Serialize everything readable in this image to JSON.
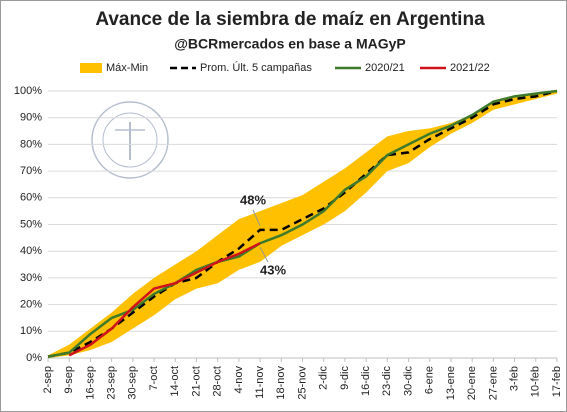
{
  "chart_data": {
    "type": "line",
    "title": "Avance de la siembra de maíz en Argentina",
    "subtitle": "@BCRmercados en base a MAGyP",
    "categories": [
      "2-sep",
      "9-sep",
      "16-sep",
      "23-sep",
      "30-sep",
      "7-oct",
      "14-oct",
      "21-oct",
      "28-oct",
      "4-nov",
      "11-nov",
      "18-nov",
      "25-nov",
      "2-dic",
      "9-dic",
      "16-dic",
      "23-dic",
      "30-dic",
      "6-ene",
      "13-ene",
      "20-ene",
      "27-ene",
      "3-feb",
      "10-feb",
      "17-feb"
    ],
    "series": [
      {
        "name": "Máx-Min",
        "color": "#ffc000",
        "style": "band",
        "upper": [
          1,
          5,
          11,
          17,
          24,
          30,
          35,
          40,
          46,
          52,
          55,
          58,
          61,
          66,
          71,
          77,
          83,
          85,
          86,
          88,
          91,
          96,
          98,
          99,
          100
        ],
        "lower": [
          0,
          1,
          3,
          6,
          11,
          16,
          22,
          26,
          28,
          33,
          36,
          42,
          46,
          50,
          55,
          62,
          70,
          73,
          79,
          84,
          88,
          93,
          95,
          97,
          99
        ]
      },
      {
        "name": "Prom. Últ. 5 campañas",
        "color": "#000000",
        "style": "dashed",
        "values": [
          0.5,
          2,
          6,
          11,
          17,
          23,
          28,
          30,
          36,
          41,
          48,
          48,
          52,
          56,
          62,
          69,
          76,
          77,
          82,
          86,
          90,
          95,
          97,
          98,
          100
        ]
      },
      {
        "name": "2020/21",
        "color": "#3f7a2a",
        "style": "solid",
        "values": [
          0.5,
          2,
          9,
          15,
          18,
          24,
          28,
          33,
          36,
          38,
          43,
          46,
          50,
          55,
          63,
          68,
          76,
          80,
          84,
          87,
          91,
          96,
          98,
          99,
          100
        ]
      },
      {
        "name": "2021/22",
        "color": "#d0121b",
        "style": "solid",
        "values": [
          null,
          1,
          5,
          11,
          19,
          26,
          28,
          32,
          36,
          39,
          43,
          null,
          null,
          null,
          null,
          null,
          null,
          null,
          null,
          null,
          null,
          null,
          null,
          null,
          null
        ]
      }
    ],
    "annotations": [
      "48%",
      "43%"
    ],
    "ylim": [
      0,
      100
    ],
    "yticks": [
      {
        "value": 0,
        "label": "0%"
      },
      {
        "value": 10,
        "label": "10%"
      },
      {
        "value": 20,
        "label": "20%"
      },
      {
        "value": 30,
        "label": "30%"
      },
      {
        "value": 40,
        "label": "40%"
      },
      {
        "value": 50,
        "label": "50%"
      },
      {
        "value": 60,
        "label": "60%"
      },
      {
        "value": 70,
        "label": "70%"
      },
      {
        "value": 80,
        "label": "80%"
      },
      {
        "value": 90,
        "label": "90%"
      },
      {
        "value": 100,
        "label": "100%"
      }
    ],
    "grid": true
  }
}
